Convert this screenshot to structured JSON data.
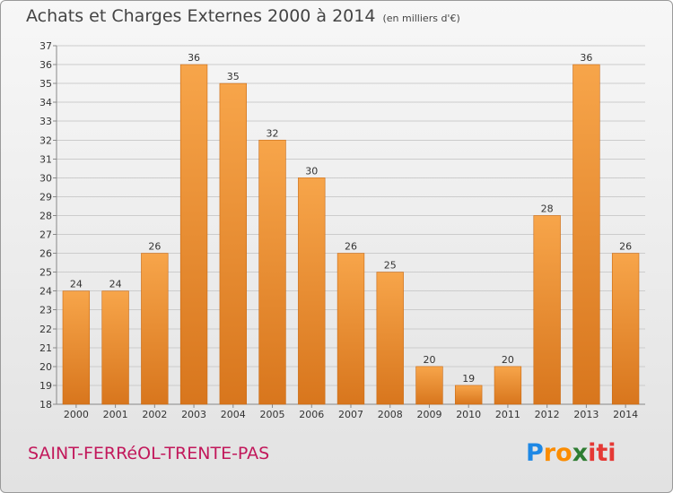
{
  "title": "Achats et Charges Externes 2000 à 2014",
  "subtitle": "(en milliers d'€)",
  "commune": "SAINT-FERRéOL-TRENTE-PAS",
  "logo": {
    "letters": [
      "P",
      "r",
      "o",
      "x",
      "i",
      "t",
      "i"
    ],
    "colors": [
      "#1e88e5",
      "#fb8c00",
      "#fb8c00",
      "#2e7d32",
      "#e53935",
      "#e53935",
      "#e53935"
    ]
  },
  "colors": {
    "bar_light": "#f7a54a",
    "bar_dark": "#d8761d",
    "grid": "#cccccc",
    "commune_text": "#c2185b"
  },
  "chart_data": {
    "type": "bar",
    "title": "Achats et Charges Externes 2000 à 2014",
    "subtitle": "(en milliers d'€)",
    "categories": [
      "2000",
      "2001",
      "2002",
      "2003",
      "2004",
      "2005",
      "2006",
      "2007",
      "2008",
      "2009",
      "2010",
      "2011",
      "2012",
      "2013",
      "2014"
    ],
    "values": [
      24,
      24,
      26,
      36,
      35,
      32,
      30,
      26,
      25,
      20,
      19,
      20,
      28,
      36,
      26
    ],
    "ylim": [
      18,
      37
    ],
    "yticks": [
      18,
      19,
      20,
      21,
      22,
      23,
      24,
      25,
      26,
      27,
      28,
      29,
      30,
      31,
      32,
      33,
      34,
      35,
      36,
      37
    ],
    "grid": true,
    "data_labels": true
  }
}
